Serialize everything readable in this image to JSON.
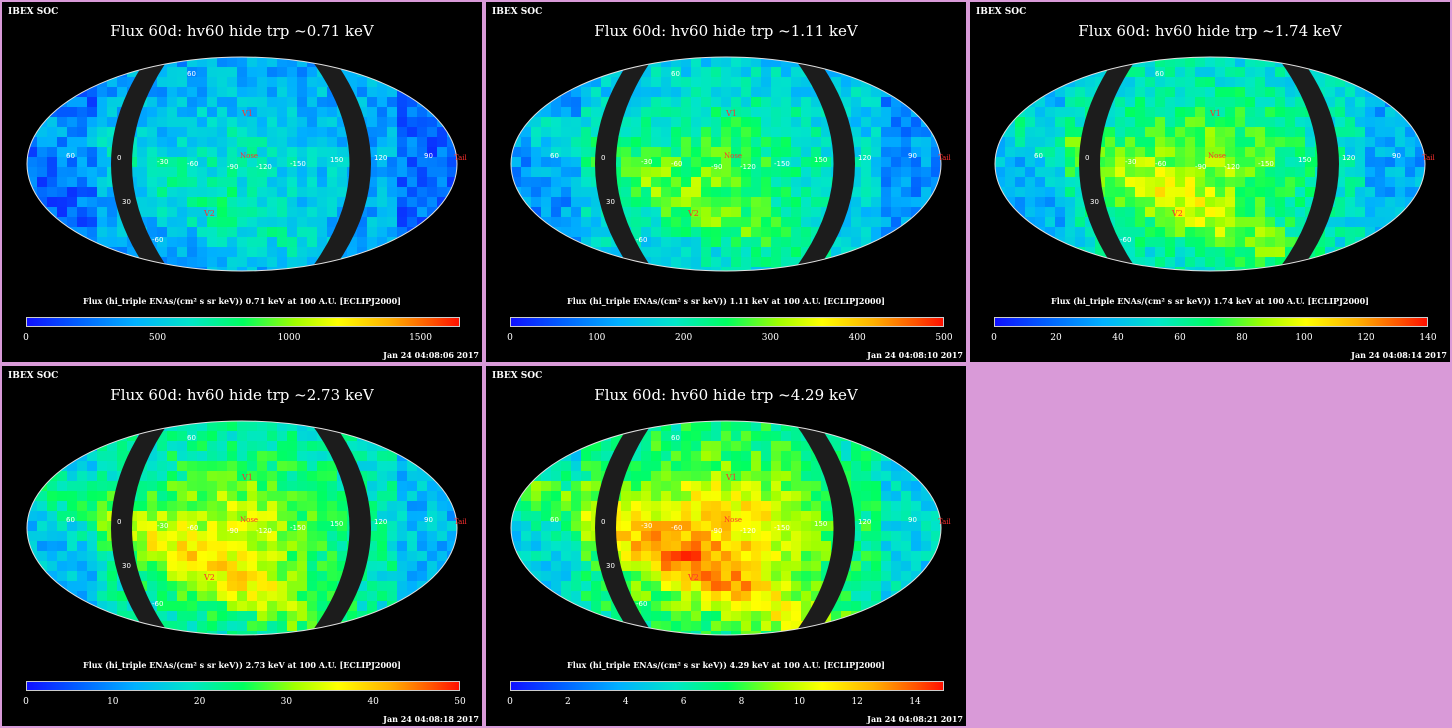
{
  "panels": [
    {
      "header": "IBEX SOC",
      "title": "Flux   60d: hv60 hide trp ~0.71 keV",
      "caption": "Flux (hi_triple ENAs/(cm² s sr keV))  0.71 keV at 100 A.U. [ECLIPJ2000]",
      "ticks": [
        "0",
        "500",
        "1000",
        "1500"
      ],
      "tick_values": [
        0,
        500,
        1000,
        1500
      ],
      "scale_max": 1650,
      "timestamp": "Jan 24 04:08:06 2017",
      "markers": {
        "v1": "V1",
        "v2": "V2",
        "nose": "Nose",
        "tail": "Tail"
      },
      "grid_labels": [
        "60",
        "0",
        "-30",
        "-60",
        "-90",
        "-120",
        "-150",
        "150",
        "120",
        "90",
        "-60",
        "60",
        "30"
      ],
      "intensity": 0.25
    },
    {
      "header": "IBEX SOC",
      "title": "Flux   60d: hv60 hide trp ~1.11 keV",
      "caption": "Flux (hi_triple ENAs/(cm² s sr keV))  1.11 keV at 100 A.U. [ECLIPJ2000]",
      "ticks": [
        "0",
        "100",
        "200",
        "300",
        "400",
        "500"
      ],
      "tick_values": [
        0,
        100,
        200,
        300,
        400,
        500
      ],
      "scale_max": 500,
      "timestamp": "Jan 24 04:08:10 2017",
      "markers": {
        "v1": "V1",
        "v2": "V2",
        "nose": "Nose",
        "tail": "Tail"
      },
      "grid_labels": [
        "60",
        "0",
        "-30",
        "-60",
        "-90",
        "-120",
        "-150",
        "150",
        "120",
        "90",
        "-60",
        "60",
        "30"
      ],
      "intensity": 0.38
    },
    {
      "header": "IBEX SOC",
      "title": "Flux   60d: hv60 hide trp ~1.74 keV",
      "caption": "Flux (hi_triple ENAs/(cm² s sr keV))  1.74 keV at 100 A.U. [ECLIPJ2000]",
      "ticks": [
        "0",
        "20",
        "40",
        "60",
        "80",
        "100",
        "120",
        "140"
      ],
      "tick_values": [
        0,
        20,
        40,
        60,
        80,
        100,
        120,
        140
      ],
      "scale_max": 140,
      "timestamp": "Jan 24 04:08:14 2017",
      "markers": {
        "v1": "V1",
        "v2": "V2",
        "nose": "Nose",
        "tail": "Tail"
      },
      "grid_labels": [
        "60",
        "0",
        "-30",
        "-60",
        "-90",
        "-120",
        "-150",
        "150",
        "120",
        "90",
        "-60",
        "60",
        "30"
      ],
      "intensity": 0.45
    },
    {
      "header": "IBEX SOC",
      "title": "Flux   60d: hv60 hide trp ~2.73 keV",
      "caption": "Flux (hi_triple ENAs/(cm² s sr keV))  2.73 keV at 100 A.U. [ECLIPJ2000]",
      "ticks": [
        "0",
        "10",
        "20",
        "30",
        "40",
        "50"
      ],
      "tick_values": [
        0,
        10,
        20,
        30,
        40,
        50
      ],
      "scale_max": 50,
      "timestamp": "Jan 24 04:08:18 2017",
      "markers": {
        "v1": "V1",
        "v2": "V2",
        "nose": "Nose",
        "tail": "Tail"
      },
      "grid_labels": [
        "60",
        "0",
        "-30",
        "-60",
        "-90",
        "-120",
        "-150",
        "150",
        "120",
        "90",
        "-60",
        "60",
        "30"
      ],
      "intensity": 0.5
    },
    {
      "header": "IBEX SOC",
      "title": "Flux   60d: hv60 hide trp ~4.29 keV",
      "caption": "Flux (hi_triple ENAs/(cm² s sr keV))  4.29 keV at 100 A.U. [ECLIPJ2000]",
      "ticks": [
        "0",
        "2",
        "4",
        "6",
        "8",
        "10",
        "12",
        "14"
      ],
      "tick_values": [
        0,
        2,
        4,
        6,
        8,
        10,
        12,
        14
      ],
      "scale_max": 15,
      "timestamp": "Jan 24 04:08:21 2017",
      "markers": {
        "v1": "V1",
        "v2": "V2",
        "nose": "Nose",
        "tail": "Tail"
      },
      "grid_labels": [
        "60",
        "0",
        "-30",
        "-60",
        "-90",
        "-120",
        "-150",
        "150",
        "120",
        "90",
        "-60",
        "60",
        "30"
      ],
      "intensity": 0.6
    }
  ],
  "colors": {
    "background": "#d99ad8",
    "panel_bg": "#000000",
    "marker": "#ff3030",
    "grid_label": "#00cc44",
    "mask": "#1c1c1c"
  }
}
